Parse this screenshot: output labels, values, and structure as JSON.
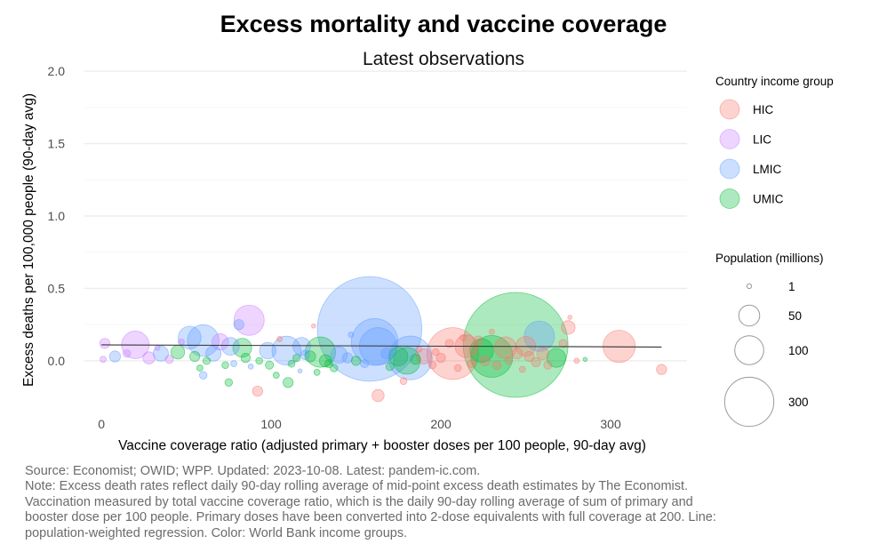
{
  "chart_data": {
    "type": "scatter",
    "title": "Excess mortality and vaccine coverage",
    "subtitle": "Latest observations",
    "xlabel": "Vaccine coverage ratio (adjusted primary + booster doses per 100 people, 90-day avg)",
    "ylabel": "Excess deaths per 100,000 people (90-day avg)",
    "xlim": [
      -10,
      345
    ],
    "ylim": [
      -0.32,
      2.05
    ],
    "x_ticks": [
      0,
      100,
      200,
      300
    ],
    "y_ticks": [
      0.0,
      0.5,
      1.0,
      1.5,
      2.0
    ],
    "x_tick_labels": [
      "0",
      "100",
      "200",
      "300"
    ],
    "y_tick_labels": [
      "0.0",
      "0.5",
      "1.0",
      "1.5",
      "2.0"
    ],
    "grid": true,
    "regression_line": {
      "x": [
        0,
        330
      ],
      "y": [
        0.11,
        0.095
      ]
    },
    "color_legend": {
      "title": "Country income group",
      "position": "right",
      "groups": [
        {
          "name": "HIC",
          "color": "#f8766d"
        },
        {
          "name": "LIC",
          "color": "#c77cff"
        },
        {
          "name": "LMIC",
          "color": "#619cff"
        },
        {
          "name": "UMIC",
          "color": "#00ba38"
        }
      ]
    },
    "size_legend": {
      "title": "Population (millions)",
      "entries": [
        {
          "value": 1,
          "label": "1"
        },
        {
          "value": 50,
          "label": "50"
        },
        {
          "value": 100,
          "label": "100"
        },
        {
          "value": 300,
          "label": "300"
        }
      ]
    },
    "points": [
      {
        "x": 158,
        "y": 0.22,
        "pop": 1400,
        "group": "LMIC"
      },
      {
        "x": 244,
        "y": 0.11,
        "pop": 1410,
        "group": "UMIC"
      },
      {
        "x": 207,
        "y": 0.05,
        "pop": 333,
        "group": "HIC"
      },
      {
        "x": 161,
        "y": 0.13,
        "pop": 270,
        "group": "LMIC"
      },
      {
        "x": 230,
        "y": 0.03,
        "pop": 215,
        "group": "UMIC"
      },
      {
        "x": 182,
        "y": 0.02,
        "pop": 235,
        "group": "LMIC"
      },
      {
        "x": 163,
        "y": 0.1,
        "pop": 170,
        "group": "LMIC"
      },
      {
        "x": 60,
        "y": 0.14,
        "pop": 120,
        "group": "LMIC"
      },
      {
        "x": 87,
        "y": 0.28,
        "pop": 110,
        "group": "LIC"
      },
      {
        "x": 20,
        "y": 0.11,
        "pop": 90,
        "group": "LIC"
      },
      {
        "x": 305,
        "y": 0.1,
        "pop": 125,
        "group": "HIC"
      },
      {
        "x": 258,
        "y": 0.17,
        "pop": 110,
        "group": "LMIC"
      },
      {
        "x": 109,
        "y": 0.07,
        "pop": 100,
        "group": "LMIC"
      },
      {
        "x": 129,
        "y": 0.06,
        "pop": 110,
        "group": "UMIC"
      },
      {
        "x": 180,
        "y": 0.0,
        "pop": 85,
        "group": "UMIC"
      },
      {
        "x": 52,
        "y": 0.16,
        "pop": 60,
        "group": "LMIC"
      },
      {
        "x": 215,
        "y": 0.1,
        "pop": 60,
        "group": "HIC"
      },
      {
        "x": 224,
        "y": 0.07,
        "pop": 65,
        "group": "UMIC"
      },
      {
        "x": 238,
        "y": 0.09,
        "pop": 55,
        "group": "HIC"
      },
      {
        "x": 250,
        "y": 0.1,
        "pop": 45,
        "group": "HIC"
      },
      {
        "x": 268,
        "y": 0.02,
        "pop": 40,
        "group": "UMIC"
      },
      {
        "x": 275,
        "y": 0.23,
        "pop": 20,
        "group": "HIC"
      },
      {
        "x": 190,
        "y": 0.03,
        "pop": 25,
        "group": "HIC"
      },
      {
        "x": 175,
        "y": 0.03,
        "pop": 40,
        "group": "UMIC"
      },
      {
        "x": 140,
        "y": 0.04,
        "pop": 30,
        "group": "LMIC"
      },
      {
        "x": 118,
        "y": 0.1,
        "pop": 35,
        "group": "LMIC"
      },
      {
        "x": 98,
        "y": 0.07,
        "pop": 30,
        "group": "LMIC"
      },
      {
        "x": 83,
        "y": 0.09,
        "pop": 40,
        "group": "UMIC"
      },
      {
        "x": 76,
        "y": 0.1,
        "pop": 35,
        "group": "LMIC"
      },
      {
        "x": 70,
        "y": 0.13,
        "pop": 30,
        "group": "LIC"
      },
      {
        "x": 66,
        "y": 0.05,
        "pop": 25,
        "group": "LMIC"
      },
      {
        "x": 45,
        "y": 0.06,
        "pop": 20,
        "group": "UMIC"
      },
      {
        "x": 35,
        "y": 0.05,
        "pop": 25,
        "group": "LMIC"
      },
      {
        "x": 28,
        "y": 0.02,
        "pop": 15,
        "group": "LIC"
      },
      {
        "x": 8,
        "y": 0.03,
        "pop": 12,
        "group": "LMIC"
      },
      {
        "x": 2,
        "y": 0.12,
        "pop": 10,
        "group": "LIC"
      },
      {
        "x": 1,
        "y": 0.01,
        "pop": 3,
        "group": "LIC"
      },
      {
        "x": 15,
        "y": 0.05,
        "pop": 5,
        "group": "LIC"
      },
      {
        "x": 40,
        "y": 0.01,
        "pop": 6,
        "group": "LIC"
      },
      {
        "x": 55,
        "y": 0.03,
        "pop": 10,
        "group": "UMIC"
      },
      {
        "x": 58,
        "y": -0.05,
        "pop": 3,
        "group": "UMIC"
      },
      {
        "x": 62,
        "y": 0.0,
        "pop": 5,
        "group": "UMIC"
      },
      {
        "x": 73,
        "y": -0.03,
        "pop": 4,
        "group": "UMIC"
      },
      {
        "x": 75,
        "y": -0.15,
        "pop": 5,
        "group": "UMIC"
      },
      {
        "x": 78,
        "y": -0.02,
        "pop": 3,
        "group": "LMIC"
      },
      {
        "x": 81,
        "y": 0.25,
        "pop": 10,
        "group": "LMIC"
      },
      {
        "x": 85,
        "y": 0.02,
        "pop": 8,
        "group": "UMIC"
      },
      {
        "x": 92,
        "y": -0.21,
        "pop": 10,
        "group": "HIC"
      },
      {
        "x": 93,
        "y": 0.0,
        "pop": 4,
        "group": "UMIC"
      },
      {
        "x": 99,
        "y": -0.03,
        "pop": 6,
        "group": "UMIC"
      },
      {
        "x": 103,
        "y": -0.1,
        "pop": 3,
        "group": "UMIC"
      },
      {
        "x": 110,
        "y": -0.15,
        "pop": 10,
        "group": "UMIC"
      },
      {
        "x": 112,
        "y": -0.02,
        "pop": 4,
        "group": "UMIC"
      },
      {
        "x": 115,
        "y": 0.02,
        "pop": 5,
        "group": "UMIC"
      },
      {
        "x": 120,
        "y": 0.04,
        "pop": 8,
        "group": "LMIC"
      },
      {
        "x": 123,
        "y": 0.03,
        "pop": 12,
        "group": "UMIC"
      },
      {
        "x": 127,
        "y": -0.08,
        "pop": 3,
        "group": "UMIC"
      },
      {
        "x": 132,
        "y": 0.0,
        "pop": 15,
        "group": "UMIC"
      },
      {
        "x": 134,
        "y": -0.02,
        "pop": 6,
        "group": "UMIC"
      },
      {
        "x": 137,
        "y": -0.05,
        "pop": 5,
        "group": "UMIC"
      },
      {
        "x": 145,
        "y": 0.02,
        "pop": 10,
        "group": "LMIC"
      },
      {
        "x": 150,
        "y": 0.0,
        "pop": 8,
        "group": "UMIC"
      },
      {
        "x": 155,
        "y": -0.02,
        "pop": 6,
        "group": "LMIC"
      },
      {
        "x": 163,
        "y": -0.24,
        "pop": 15,
        "group": "HIC"
      },
      {
        "x": 168,
        "y": 0.05,
        "pop": 12,
        "group": "LMIC"
      },
      {
        "x": 170,
        "y": -0.04,
        "pop": 6,
        "group": "UMIC"
      },
      {
        "x": 178,
        "y": -0.14,
        "pop": 4,
        "group": "HIC"
      },
      {
        "x": 185,
        "y": 0.01,
        "pop": 10,
        "group": "UMIC"
      },
      {
        "x": 195,
        "y": -0.03,
        "pop": 5,
        "group": "HIC"
      },
      {
        "x": 200,
        "y": 0.02,
        "pop": 8,
        "group": "HIC"
      },
      {
        "x": 205,
        "y": 0.12,
        "pop": 6,
        "group": "HIC"
      },
      {
        "x": 210,
        "y": -0.05,
        "pop": 4,
        "group": "HIC"
      },
      {
        "x": 218,
        "y": -0.02,
        "pop": 6,
        "group": "HIC"
      },
      {
        "x": 222,
        "y": 0.14,
        "pop": 8,
        "group": "HIC"
      },
      {
        "x": 226,
        "y": 0.0,
        "pop": 10,
        "group": "HIC"
      },
      {
        "x": 233,
        "y": -0.03,
        "pop": 7,
        "group": "HIC"
      },
      {
        "x": 240,
        "y": 0.0,
        "pop": 5,
        "group": "HIC"
      },
      {
        "x": 245,
        "y": 0.05,
        "pop": 12,
        "group": "HIC"
      },
      {
        "x": 252,
        "y": 0.03,
        "pop": 10,
        "group": "HIC"
      },
      {
        "x": 256,
        "y": -0.01,
        "pop": 8,
        "group": "HIC"
      },
      {
        "x": 260,
        "y": 0.05,
        "pop": 15,
        "group": "HIC"
      },
      {
        "x": 263,
        "y": -0.03,
        "pop": 6,
        "group": "HIC"
      },
      {
        "x": 272,
        "y": 0.12,
        "pop": 6,
        "group": "HIC"
      },
      {
        "x": 276,
        "y": 0.3,
        "pop": 1,
        "group": "HIC"
      },
      {
        "x": 280,
        "y": 0.0,
        "pop": 2,
        "group": "HIC"
      },
      {
        "x": 330,
        "y": -0.06,
        "pop": 10,
        "group": "HIC"
      },
      {
        "x": 60,
        "y": -0.1,
        "pop": 5,
        "group": "LMIC"
      },
      {
        "x": 105,
        "y": 0.15,
        "pop": 2,
        "group": "HIC"
      },
      {
        "x": 125,
        "y": 0.24,
        "pop": 1,
        "group": "HIC"
      },
      {
        "x": 147,
        "y": 0.18,
        "pop": 2,
        "group": "LMIC"
      },
      {
        "x": 187,
        "y": 0.08,
        "pop": 3,
        "group": "HIC"
      },
      {
        "x": 197,
        "y": 0.06,
        "pop": 4,
        "group": "HIC"
      },
      {
        "x": 213,
        "y": 0.16,
        "pop": 3,
        "group": "HIC"
      },
      {
        "x": 230,
        "y": 0.2,
        "pop": 2,
        "group": "HIC"
      },
      {
        "x": 248,
        "y": -0.06,
        "pop": 3,
        "group": "HIC"
      },
      {
        "x": 285,
        "y": 0.01,
        "pop": 1,
        "group": "UMIC"
      },
      {
        "x": 33,
        "y": 0.09,
        "pop": 2,
        "group": "LIC"
      },
      {
        "x": 47,
        "y": 0.13,
        "pop": 3,
        "group": "LIC"
      },
      {
        "x": 88,
        "y": -0.04,
        "pop": 2,
        "group": "LMIC"
      },
      {
        "x": 117,
        "y": -0.07,
        "pop": 1,
        "group": "LMIC"
      }
    ],
    "notes": [
      "Source: Economist; OWID; WPP. Updated: 2023-10-08. Latest: pandem-ic.com.",
      "Note: Excess death rates reflect daily 90-day rolling average of mid-point excess death estimates by The Economist.",
      "Vaccination measured by total vaccine coverage ratio, which is the daily 90-day rolling average of sum of primary and",
      "booster dose per 100 people. Primary doses have been converted into 2-dose equivalents with full coverage at 200. Line:",
      "population-weighted regression. Color: World Bank income groups."
    ]
  }
}
